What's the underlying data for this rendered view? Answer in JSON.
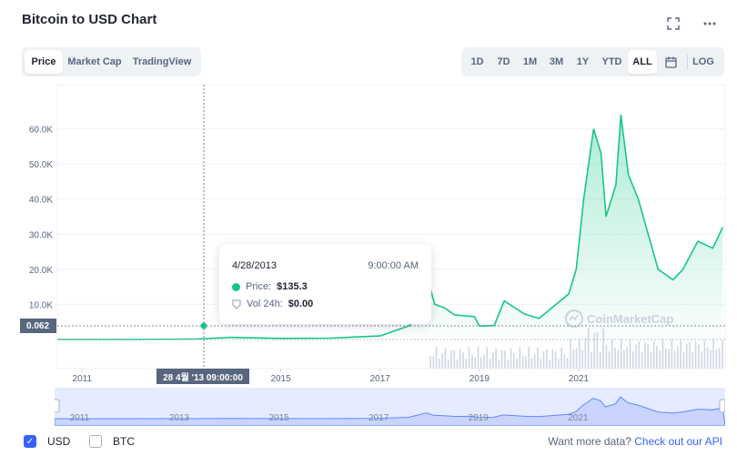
{
  "header": {
    "title": "Bitcoin to USD Chart",
    "icons": [
      "fullscreen-icon",
      "more-icon"
    ]
  },
  "view_tabs": [
    {
      "label": "Price",
      "active": true
    },
    {
      "label": "Market Cap",
      "active": false
    },
    {
      "label": "TradingView",
      "active": false
    }
  ],
  "range_buttons": [
    {
      "label": "1D",
      "active": false
    },
    {
      "label": "7D",
      "active": false
    },
    {
      "label": "1M",
      "active": false
    },
    {
      "label": "3M",
      "active": false
    },
    {
      "label": "1Y",
      "active": false
    },
    {
      "label": "YTD",
      "active": false
    },
    {
      "label": "ALL",
      "active": true
    }
  ],
  "calendar_icon": "calendar-icon",
  "log_label": "LOG",
  "tooltip": {
    "date": "4/28/2013",
    "time": "9:00:00 AM",
    "price_label": "Price:",
    "price_value": "$135.3",
    "vol_label": "Vol 24h:",
    "vol_value": "$0.00"
  },
  "crosshair": {
    "y_label": "0.062",
    "x_label": "28 4월 '13   09:00:00"
  },
  "watermark": "CoinMarketCap",
  "colors": {
    "price_line": "#16c784",
    "volume": "#cfd6e4",
    "navigator": "#6188ff",
    "accent": "#3861fb",
    "label_bg": "#58667e"
  },
  "currency": {
    "usd": {
      "label": "USD",
      "checked": true
    },
    "btc": {
      "label": "BTC",
      "checked": false
    }
  },
  "footer": {
    "text": "Want more data?",
    "link": "Check out our API"
  },
  "chart_data": {
    "type": "area",
    "y_ticks": [
      "10.0K",
      "20.0K",
      "30.0K",
      "40.0K",
      "50.0K",
      "60.0K"
    ],
    "x_ticks": [
      "2011",
      "2015",
      "2017",
      "2019",
      "2021"
    ],
    "navigator_ticks": [
      "2011",
      "2013",
      "2015",
      "2017",
      "2019",
      "2021"
    ],
    "ylim": [
      0,
      70000
    ],
    "x": [
      2010.5,
      2012.0,
      2013.3,
      2014.0,
      2015.0,
      2016.0,
      2017.0,
      2017.6,
      2017.96,
      2018.1,
      2018.3,
      2018.5,
      2018.9,
      2019.0,
      2019.3,
      2019.5,
      2019.9,
      2020.2,
      2020.5,
      2020.8,
      2020.95,
      2021.1,
      2021.3,
      2021.45,
      2021.55,
      2021.75,
      2021.85,
      2022.0,
      2022.2,
      2022.4,
      2022.6,
      2022.9,
      2023.1,
      2023.4,
      2023.7,
      2023.9
    ],
    "y": [
      0.06,
      10,
      135,
      600,
      300,
      400,
      1000,
      4000,
      17000,
      10000,
      9000,
      7000,
      6500,
      3800,
      4000,
      11000,
      7300,
      6000,
      9500,
      13000,
      20000,
      40000,
      60000,
      53000,
      35000,
      44000,
      64000,
      47000,
      40000,
      30000,
      20000,
      17000,
      20000,
      28000,
      26000,
      32000
    ],
    "series": [
      {
        "name": "Price",
        "values": [
          0.06,
          10,
          135,
          600,
          300,
          400,
          1000,
          4000,
          17000,
          10000,
          9000,
          7000,
          6500,
          3800,
          4000,
          11000,
          7300,
          6000,
          9500,
          13000,
          20000,
          40000,
          60000,
          53000,
          35000,
          44000,
          64000,
          47000,
          40000,
          30000,
          20000,
          17000,
          20000,
          28000,
          26000,
          32000
        ]
      }
    ]
  }
}
